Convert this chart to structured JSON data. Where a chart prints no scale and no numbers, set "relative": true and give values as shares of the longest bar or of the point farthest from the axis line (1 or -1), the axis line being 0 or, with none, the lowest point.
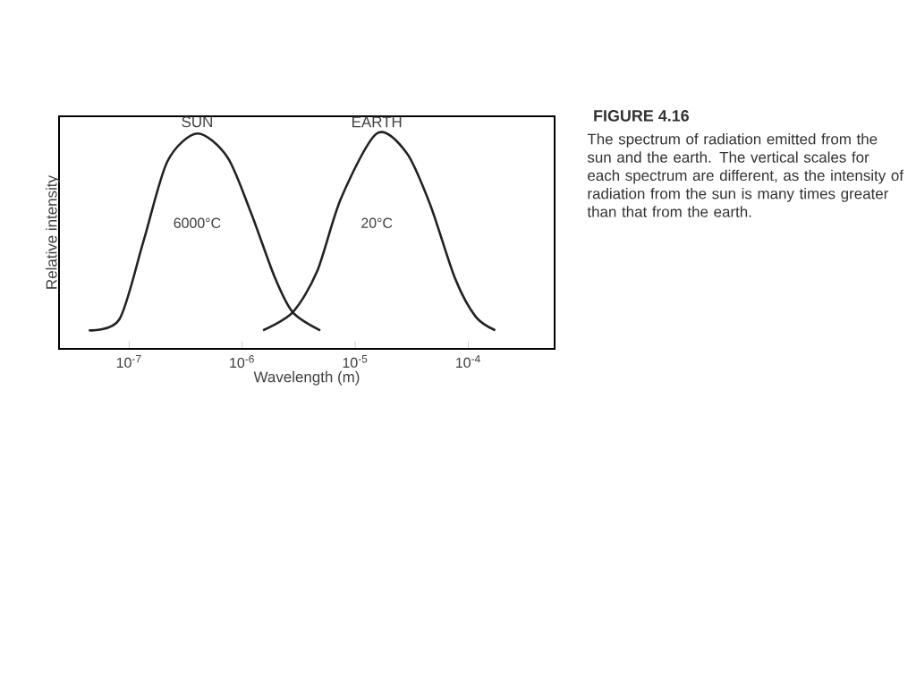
{
  "chart_data": {
    "type": "line",
    "title": "FIGURE 4.16",
    "subtitle": "The spectrum of radiation emitted from the sun and the earth. The vertical scales for each spectrum are different, as the intensity of radiation from the sun is many times greater than that from the earth.",
    "xlabel": "Wavelength (m)",
    "ylabel": "Relative intensity",
    "relative": true,
    "log": "x",
    "xlim": [
      2.4e-08,
      0.00058
    ],
    "xticks": [
      {
        "value": 1e-07,
        "label": "10$^{-7}$"
      },
      {
        "value": 1e-06,
        "label": "10$^{-6}$"
      },
      {
        "value": 1e-05,
        "label": "10$^{-5}$"
      },
      {
        "value": 0.0001,
        "label": "10$^{-4}$"
      }
    ],
    "series": [
      {
        "name": "SUN",
        "color": "#222222",
        "x": [
          4.4e-08,
          8.2e-08,
          1.34e-07,
          2.18e-07,
          4e-07,
          7.4e-07,
          1.2e-06,
          1.95e-06,
          2.8e-06,
          4.9e-06
        ],
        "values": [
          0.086,
          0.137,
          0.5,
          0.87,
          1,
          0.89,
          0.63,
          0.33,
          0.17,
          0.086
        ]
      },
      {
        "name": "EARTH",
        "color": "#222222",
        "x": [
          1.53e-06,
          2.8e-06,
          4.6e-06,
          7.5e-06,
          1.55e-05,
          2.85e-05,
          4.6e-05,
          7.6e-05,
          0.000116,
          0.000173
        ],
        "values": [
          0.086,
          0.17,
          0.36,
          0.7,
          1,
          0.91,
          0.67,
          0.33,
          0.15,
          0.086
        ]
      }
    ],
    "annotations": [
      "6000°C",
      "20°C"
    ]
  }
}
